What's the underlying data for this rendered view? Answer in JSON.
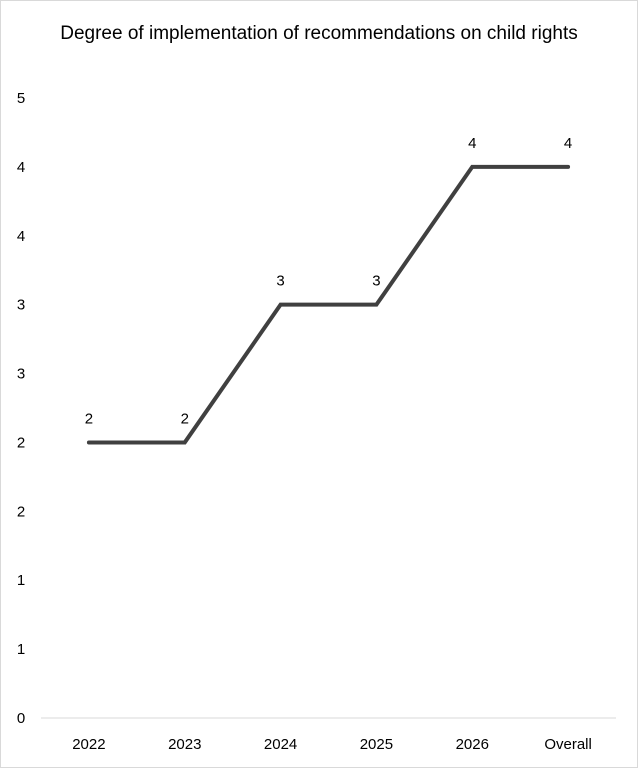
{
  "chart_data": {
    "type": "line",
    "title": "Degree of implementation of recommendations on child rights",
    "categories": [
      "2022",
      "2023",
      "2024",
      "2025",
      "2026",
      "Overall"
    ],
    "series": [
      {
        "values": [
          2,
          2,
          3,
          3,
          4,
          4
        ],
        "data_labels": [
          "2",
          "2",
          "3",
          "3",
          "4",
          "4"
        ],
        "color": "#404040"
      }
    ],
    "y_ticks": [
      0,
      0.5,
      1,
      1.5,
      2,
      2.5,
      3,
      3.5,
      4,
      4.5
    ],
    "y_tick_labels": [
      "0",
      "1",
      "1",
      "2",
      "2",
      "3",
      "3",
      "4",
      "4",
      "5"
    ],
    "ylim": [
      0,
      4.5
    ],
    "xlabel": "",
    "ylabel": "",
    "grid": false,
    "legend": "none",
    "axis_color": "#d9d9d9"
  }
}
